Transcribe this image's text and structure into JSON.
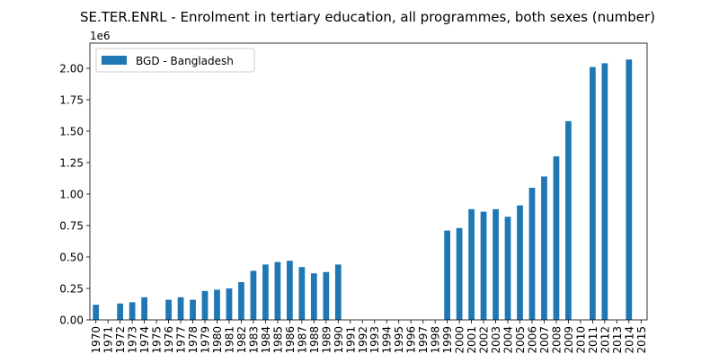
{
  "chart_data": {
    "type": "bar",
    "title": "SE.TER.ENRL - Enrolment in tertiary education, all programmes, both sexes (number)",
    "xlabel": "",
    "ylabel": "",
    "y_scale_label": "1e6",
    "ylim": [
      0,
      2.2
    ],
    "yticks": [
      0.0,
      0.25,
      0.5,
      0.75,
      1.0,
      1.25,
      1.5,
      1.75,
      2.0
    ],
    "ytick_labels": [
      "0.00",
      "0.25",
      "0.50",
      "0.75",
      "1.00",
      "1.25",
      "1.50",
      "1.75",
      "2.00"
    ],
    "grid": false,
    "legend_position": "top-left",
    "bar_color": "#1f77b4",
    "categories": [
      "1970",
      "1971",
      "1972",
      "1973",
      "1974",
      "1975",
      "1976",
      "1977",
      "1978",
      "1979",
      "1980",
      "1981",
      "1982",
      "1983",
      "1984",
      "1985",
      "1986",
      "1987",
      "1988",
      "1989",
      "1990",
      "1991",
      "1992",
      "1993",
      "1994",
      "1995",
      "1996",
      "1997",
      "1998",
      "1999",
      "2000",
      "2001",
      "2002",
      "2003",
      "2004",
      "2005",
      "2006",
      "2007",
      "2008",
      "2009",
      "2010",
      "2011",
      "2012",
      "2013",
      "2014",
      "2015"
    ],
    "series": [
      {
        "name": "BGD - Bangladesh",
        "values": [
          0.12,
          null,
          0.13,
          0.14,
          0.18,
          null,
          0.16,
          0.18,
          0.16,
          0.23,
          0.24,
          0.25,
          0.3,
          0.39,
          0.44,
          0.46,
          0.47,
          0.42,
          0.37,
          0.38,
          0.44,
          null,
          null,
          null,
          null,
          null,
          null,
          null,
          null,
          0.71,
          0.73,
          0.88,
          0.86,
          0.88,
          0.82,
          0.91,
          1.05,
          1.14,
          1.3,
          1.58,
          null,
          2.01,
          2.04,
          null,
          2.07,
          null
        ]
      }
    ]
  }
}
